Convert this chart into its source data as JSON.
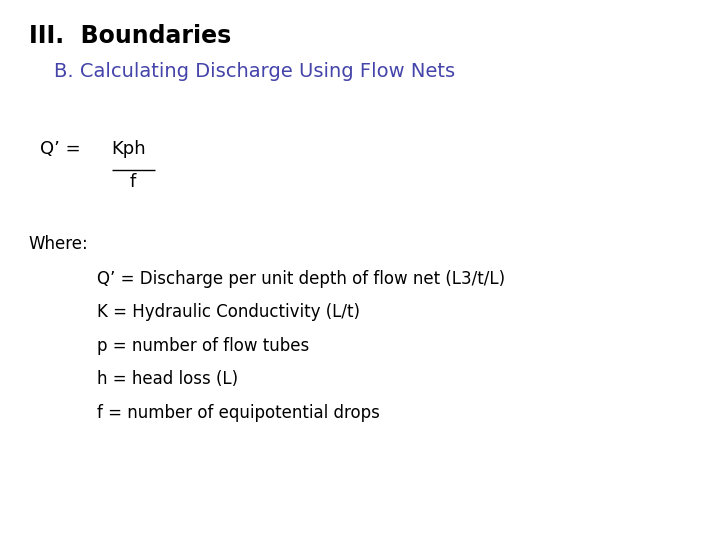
{
  "title_main": "III.  Boundaries",
  "title_sub": "B. Calculating Discharge Using Flow Nets",
  "title_main_color": "#000000",
  "title_sub_color": "#4444aa",
  "title_main_fontsize": 17,
  "title_sub_fontsize": 14,
  "where_label": "Where:",
  "definitions": [
    "Q’ = Discharge per unit depth of flow net (L3/t/L)",
    "K = Hydraulic Conductivity (L/t)",
    "p = number of flow tubes",
    "h = head loss (L)",
    "f = number of equipotential drops"
  ],
  "body_fontsize": 12,
  "formula_fontsize": 13,
  "background_color": "#ffffff",
  "text_color": "#000000"
}
